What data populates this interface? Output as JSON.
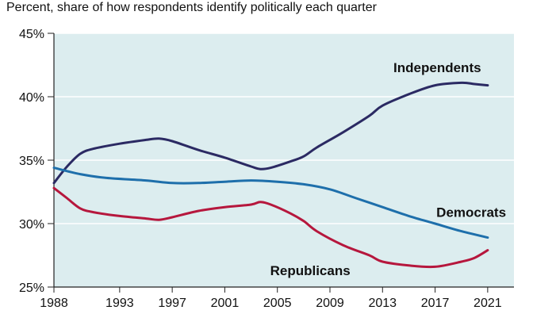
{
  "chart_data": {
    "type": "line",
    "subtitle": "Percent, share of how respondents identify politically each quarter",
    "xlim": [
      1988,
      2023
    ],
    "ylim": [
      25,
      45
    ],
    "x_ticks": [
      1988,
      1993,
      1997,
      2001,
      2005,
      2009,
      2013,
      2017,
      2021
    ],
    "y_ticks": [
      {
        "value": 25,
        "label": "25%"
      },
      {
        "value": 30,
        "label": "30%"
      },
      {
        "value": 35,
        "label": "35%"
      },
      {
        "value": 40,
        "label": "40%"
      },
      {
        "value": 45,
        "label": "45%"
      }
    ],
    "grid": "horizontal",
    "background_color": "#dcedef",
    "series": [
      {
        "name": "Independents",
        "color": "#2b2a63",
        "points": [
          [
            1988,
            33.2
          ],
          [
            1989,
            34.5
          ],
          [
            1990,
            35.5
          ],
          [
            1991,
            35.9
          ],
          [
            1993,
            36.3
          ],
          [
            1995,
            36.6
          ],
          [
            1996,
            36.7
          ],
          [
            1997,
            36.5
          ],
          [
            1999,
            35.8
          ],
          [
            2001,
            35.2
          ],
          [
            2003,
            34.5
          ],
          [
            2003.7,
            34.3
          ],
          [
            2004.5,
            34.4
          ],
          [
            2006,
            34.9
          ],
          [
            2007,
            35.3
          ],
          [
            2008,
            36.0
          ],
          [
            2010,
            37.2
          ],
          [
            2012,
            38.5
          ],
          [
            2013,
            39.3
          ],
          [
            2015,
            40.2
          ],
          [
            2017,
            40.9
          ],
          [
            2019,
            41.1
          ],
          [
            2020,
            41.0
          ],
          [
            2021,
            40.9
          ]
        ]
      },
      {
        "name": "Democrats",
        "color": "#1e6fab",
        "points": [
          [
            1988,
            34.4
          ],
          [
            1990,
            33.9
          ],
          [
            1992,
            33.6
          ],
          [
            1995,
            33.4
          ],
          [
            1997,
            33.2
          ],
          [
            1999,
            33.2
          ],
          [
            2001,
            33.3
          ],
          [
            2003,
            33.4
          ],
          [
            2005,
            33.3
          ],
          [
            2007,
            33.1
          ],
          [
            2009,
            32.7
          ],
          [
            2011,
            32.0
          ],
          [
            2013,
            31.3
          ],
          [
            2015,
            30.6
          ],
          [
            2017,
            30.0
          ],
          [
            2019,
            29.4
          ],
          [
            2021,
            28.9
          ]
        ]
      },
      {
        "name": "Republicans",
        "color": "#b6173d",
        "points": [
          [
            1988,
            32.8
          ],
          [
            1989,
            32.0
          ],
          [
            1990,
            31.2
          ],
          [
            1991,
            30.9
          ],
          [
            1993,
            30.6
          ],
          [
            1995,
            30.4
          ],
          [
            1996,
            30.3
          ],
          [
            1997,
            30.5
          ],
          [
            1999,
            31.0
          ],
          [
            2001,
            31.3
          ],
          [
            2003,
            31.5
          ],
          [
            2003.7,
            31.7
          ],
          [
            2004.5,
            31.5
          ],
          [
            2006,
            30.8
          ],
          [
            2007,
            30.2
          ],
          [
            2008,
            29.4
          ],
          [
            2010,
            28.3
          ],
          [
            2012,
            27.5
          ],
          [
            2013,
            27.0
          ],
          [
            2015,
            26.7
          ],
          [
            2017,
            26.6
          ],
          [
            2019,
            27.0
          ],
          [
            2020,
            27.3
          ],
          [
            2021,
            27.9
          ]
        ]
      }
    ]
  }
}
